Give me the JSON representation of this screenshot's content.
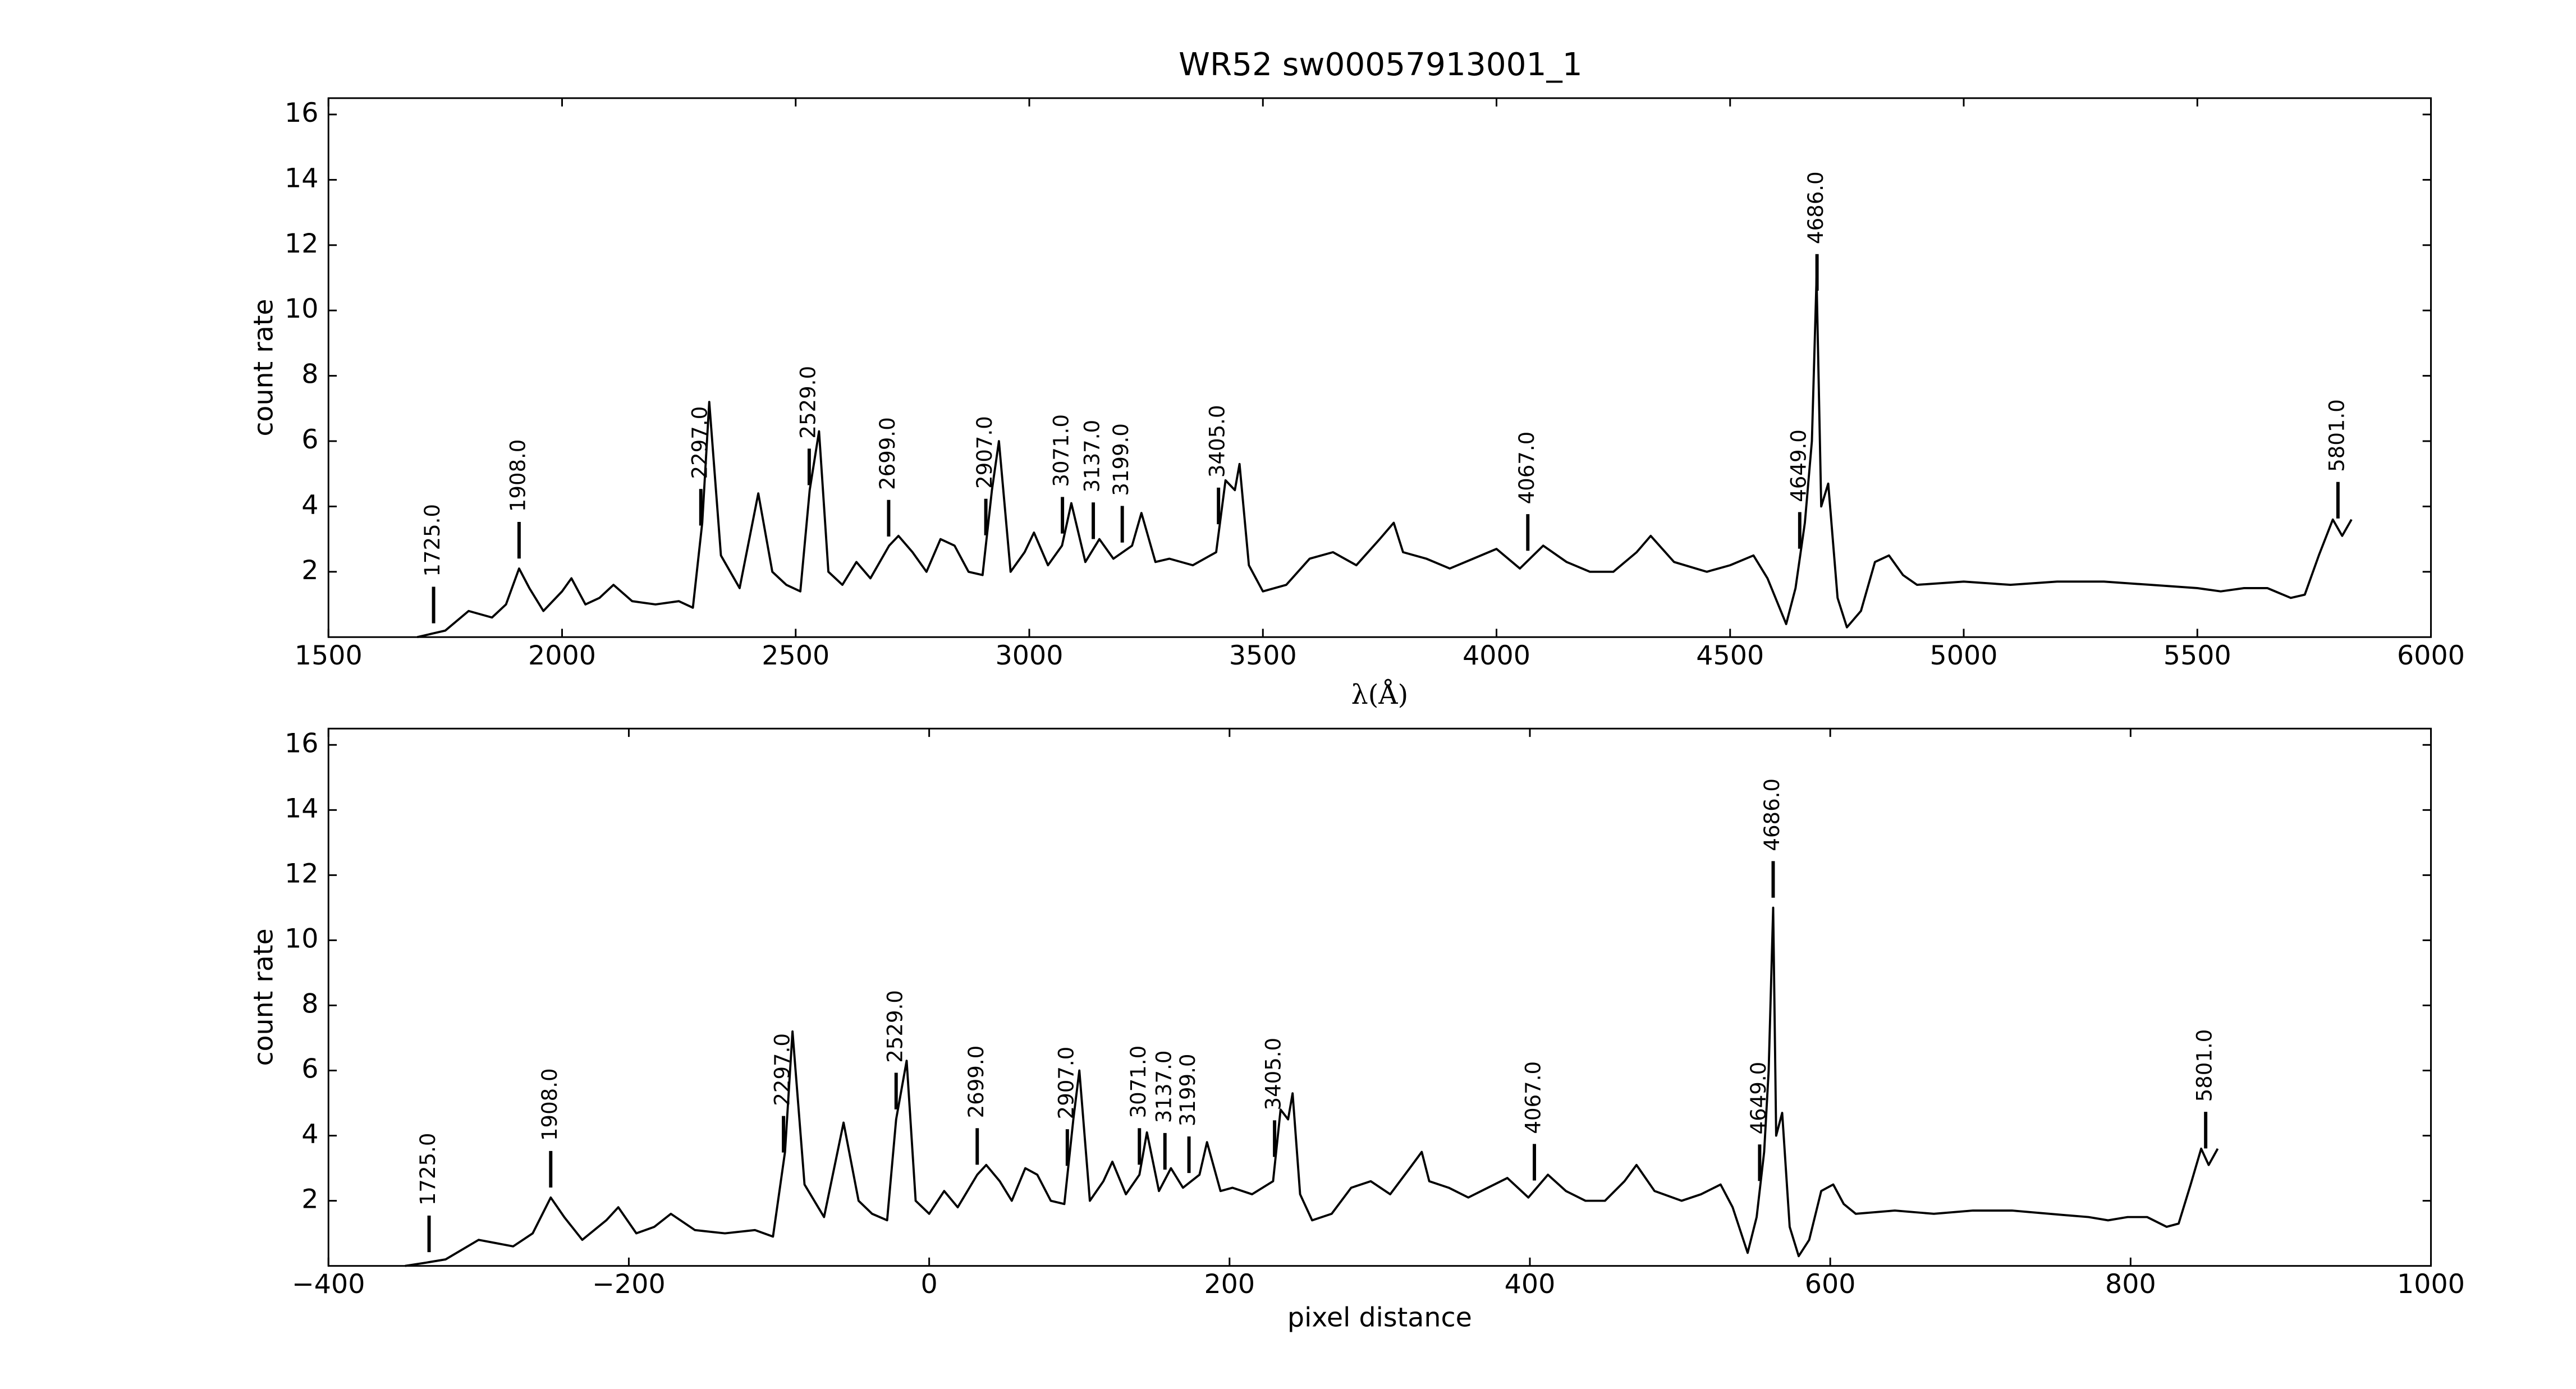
{
  "chart_data": [
    {
      "type": "line",
      "title": "WR52  sw00057913001_1",
      "x_label": "λ(Å)",
      "y_label": "count rate",
      "xlim": [
        1500,
        6000
      ],
      "ylim": [
        0,
        16.5
      ],
      "xticks": [
        1500,
        2000,
        2500,
        3000,
        3500,
        4000,
        4500,
        5000,
        5500,
        6000
      ],
      "yticks": [
        2,
        4,
        6,
        8,
        10,
        12,
        14,
        16
      ],
      "color": "#000000",
      "x": [
        1690,
        1720,
        1750,
        1800,
        1850,
        1880,
        1908,
        1930,
        1960,
        2000,
        2020,
        2050,
        2080,
        2110,
        2150,
        2200,
        2250,
        2280,
        2300,
        2315,
        2340,
        2380,
        2420,
        2450,
        2480,
        2510,
        2530,
        2550,
        2570,
        2600,
        2630,
        2660,
        2700,
        2720,
        2750,
        2780,
        2810,
        2840,
        2870,
        2900,
        2920,
        2935,
        2960,
        2990,
        3010,
        3040,
        3070,
        3090,
        3120,
        3150,
        3180,
        3220,
        3240,
        3270,
        3300,
        3350,
        3400,
        3420,
        3440,
        3450,
        3470,
        3500,
        3550,
        3600,
        3650,
        3700,
        3750,
        3780,
        3800,
        3850,
        3900,
        3950,
        4000,
        4050,
        4100,
        4150,
        4200,
        4250,
        4300,
        4330,
        4380,
        4450,
        4500,
        4550,
        4580,
        4620,
        4640,
        4660,
        4675,
        4685,
        4695,
        4710,
        4730,
        4750,
        4780,
        4810,
        4840,
        4870,
        4900,
        5000,
        5100,
        5200,
        5300,
        5400,
        5500,
        5550,
        5600,
        5650,
        5700,
        5730,
        5760,
        5790,
        5810,
        5830
      ],
      "values": [
        0,
        0.1,
        0.2,
        0.8,
        0.6,
        1.0,
        2.1,
        1.5,
        0.8,
        1.4,
        1.8,
        1.0,
        1.2,
        1.6,
        1.1,
        1.0,
        1.1,
        0.9,
        3.5,
        7.2,
        2.5,
        1.5,
        4.4,
        2.0,
        1.6,
        1.4,
        4.5,
        6.3,
        2.0,
        1.6,
        2.3,
        1.8,
        2.8,
        3.1,
        2.6,
        2.0,
        3.0,
        2.8,
        2.0,
        1.9,
        4.5,
        6.0,
        2.0,
        2.6,
        3.2,
        2.2,
        2.8,
        4.1,
        2.3,
        3.0,
        2.4,
        2.8,
        3.8,
        2.3,
        2.4,
        2.2,
        2.6,
        4.8,
        4.5,
        5.3,
        2.2,
        1.4,
        1.6,
        2.4,
        2.6,
        2.2,
        3.0,
        3.5,
        2.6,
        2.4,
        2.1,
        2.4,
        2.7,
        2.1,
        2.8,
        2.3,
        2.0,
        2.0,
        2.6,
        3.1,
        2.3,
        2.0,
        2.2,
        2.5,
        1.8,
        0.4,
        1.5,
        3.5,
        6.0,
        11.0,
        4.0,
        4.7,
        1.2,
        0.3,
        0.8,
        2.3,
        2.5,
        1.9,
        1.6,
        1.7,
        1.6,
        1.7,
        1.7,
        1.6,
        1.5,
        1.4,
        1.5,
        1.5,
        1.2,
        1.3,
        2.5,
        3.6,
        3.1,
        3.6
      ],
      "markers": [
        {
          "x": 1725,
          "label": "1725.0"
        },
        {
          "x": 1908,
          "label": "1908.0"
        },
        {
          "x": 2297,
          "label": "2297.0"
        },
        {
          "x": 2529,
          "label": "2529.0"
        },
        {
          "x": 2699,
          "label": "2699.0"
        },
        {
          "x": 2907,
          "label": "2907.0"
        },
        {
          "x": 3071,
          "label": "3071.0"
        },
        {
          "x": 3137,
          "label": "3137.0"
        },
        {
          "x": 3199,
          "label": "3199.0"
        },
        {
          "x": 3405,
          "label": "3405.0"
        },
        {
          "x": 4067,
          "label": "4067.0"
        },
        {
          "x": 4649,
          "label": "4649.0"
        },
        {
          "x": 4686,
          "label": "4686.0"
        },
        {
          "x": 5801,
          "label": "5801.0"
        }
      ]
    },
    {
      "type": "line",
      "x_label": "pixel distance",
      "y_label": "count rate",
      "xlim": [
        -400,
        1000
      ],
      "ylim": [
        0,
        16.5
      ],
      "xticks": [
        {
          "value": -400,
          "label": "−400"
        },
        {
          "value": -200,
          "label": "−200"
        },
        0,
        200,
        400,
        600,
        800,
        1000
      ],
      "yticks": [
        2,
        4,
        6,
        8,
        10,
        12,
        14,
        16
      ],
      "color": "#000000",
      "x": [
        -349,
        -335,
        -322,
        -300,
        -277,
        -264,
        -252,
        -243,
        -231,
        -215,
        -207,
        -195,
        -183,
        -172,
        -156,
        -136,
        -116,
        -104,
        -96,
        -91,
        -83,
        -70,
        -57,
        -47,
        -38,
        -28,
        -22,
        -15,
        -9,
        0,
        10,
        19,
        32,
        38,
        47,
        55,
        64,
        72,
        81,
        90,
        96,
        100,
        107,
        116,
        122,
        131,
        140,
        145,
        153,
        161,
        169,
        180,
        185,
        194,
        202,
        215,
        229,
        234,
        239,
        242,
        247,
        255,
        268,
        281,
        294,
        307,
        320,
        328,
        333,
        346,
        359,
        372,
        385,
        399,
        412,
        424,
        437,
        450,
        463,
        471,
        483,
        501,
        514,
        527,
        535,
        545,
        551,
        556,
        559,
        562,
        564,
        568,
        573,
        579,
        586,
        594,
        602,
        609,
        617,
        643,
        669,
        695,
        721,
        746,
        772,
        785,
        798,
        811,
        824,
        832,
        840,
        847,
        852,
        858
      ],
      "values": [
        0,
        0.1,
        0.2,
        0.8,
        0.6,
        1.0,
        2.1,
        1.5,
        0.8,
        1.4,
        1.8,
        1.0,
        1.2,
        1.6,
        1.1,
        1.0,
        1.1,
        0.9,
        3.5,
        7.2,
        2.5,
        1.5,
        4.4,
        2.0,
        1.6,
        1.4,
        4.5,
        6.3,
        2.0,
        1.6,
        2.3,
        1.8,
        2.8,
        3.1,
        2.6,
        2.0,
        3.0,
        2.8,
        2.0,
        1.9,
        4.5,
        6.0,
        2.0,
        2.6,
        3.2,
        2.2,
        2.8,
        4.1,
        2.3,
        3.0,
        2.4,
        2.8,
        3.8,
        2.3,
        2.4,
        2.2,
        2.6,
        4.8,
        4.5,
        5.3,
        2.2,
        1.4,
        1.6,
        2.4,
        2.6,
        2.2,
        3.0,
        3.5,
        2.6,
        2.4,
        2.1,
        2.4,
        2.7,
        2.1,
        2.8,
        2.3,
        2.0,
        2.0,
        2.6,
        3.1,
        2.3,
        2.0,
        2.2,
        2.5,
        1.8,
        0.4,
        1.5,
        3.5,
        6.0,
        11.0,
        4.0,
        4.7,
        1.2,
        0.3,
        0.8,
        2.3,
        2.5,
        1.9,
        1.6,
        1.7,
        1.6,
        1.7,
        1.7,
        1.6,
        1.5,
        1.4,
        1.5,
        1.5,
        1.2,
        1.3,
        2.5,
        3.6,
        3.1,
        3.6
      ],
      "markers": [
        {
          "x": -333,
          "label": "1725.0"
        },
        {
          "x": -252,
          "label": "1908.0"
        },
        {
          "x": -97,
          "label": "2297.0"
        },
        {
          "x": -22,
          "label": "2529.0"
        },
        {
          "x": 32,
          "label": "2699.0"
        },
        {
          "x": 92,
          "label": "2907.0"
        },
        {
          "x": 140,
          "label": "3071.0"
        },
        {
          "x": 157,
          "label": "3137.0"
        },
        {
          "x": 173,
          "label": "3199.0"
        },
        {
          "x": 230,
          "label": "3405.0"
        },
        {
          "x": 403,
          "label": "4067.0"
        },
        {
          "x": 553,
          "label": "4649.0"
        },
        {
          "x": 562,
          "label": "4686.0"
        },
        {
          "x": 850,
          "label": "5801.0"
        }
      ]
    }
  ]
}
